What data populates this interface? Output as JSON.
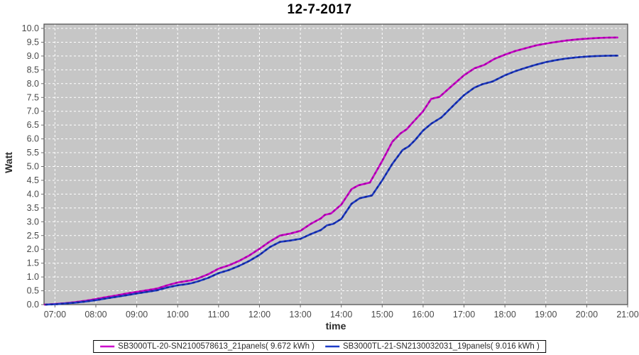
{
  "chart_data": {
    "type": "line",
    "title": "12-7-2017",
    "xlabel": "time",
    "ylabel": "Watt",
    "grid": true,
    "legend_position": "bottom",
    "colors": {
      "plot_bg": "#c6c6c6",
      "grid": "#ffffff",
      "plot_border": "#545454",
      "tick_mark": "#6b6b6b",
      "tick_text": "#4a4a4a",
      "outer_bg": "#ffffff"
    },
    "x_axis": {
      "min": 6.733,
      "max": 21,
      "tick_hours": [
        7,
        8,
        9,
        10,
        11,
        12,
        13,
        14,
        15,
        16,
        17,
        18,
        19,
        20,
        21
      ],
      "tick_labels": [
        "07:00",
        "08:00",
        "09:00",
        "10:00",
        "11:00",
        "12:00",
        "13:00",
        "14:00",
        "15:00",
        "16:00",
        "17:00",
        "18:00",
        "19:00",
        "20:00",
        "21:00"
      ]
    },
    "y_axis": {
      "min": 0,
      "max": 10.15,
      "tick_step": 0.5,
      "tick_labels": [
        "0.0",
        "0.5",
        "1.0",
        "1.5",
        "2.0",
        "2.5",
        "3.0",
        "3.5",
        "4.0",
        "4.5",
        "5.0",
        "5.5",
        "6.0",
        "6.5",
        "7.0",
        "7.5",
        "8.0",
        "8.5",
        "9.0",
        "9.5",
        "10.0"
      ]
    },
    "series": [
      {
        "name": "SB3000TL-20-SN2100578613_21panels( 9.672 kWh )",
        "color": "#cc00cc",
        "dot_color": "#a400a4",
        "total_kwh": "9.672",
        "points": [
          [
            6.75,
            0.0
          ],
          [
            7.0,
            0.02
          ],
          [
            7.25,
            0.05
          ],
          [
            7.5,
            0.09
          ],
          [
            7.75,
            0.14
          ],
          [
            8.0,
            0.2
          ],
          [
            8.25,
            0.27
          ],
          [
            8.5,
            0.33
          ],
          [
            8.75,
            0.4
          ],
          [
            9.0,
            0.46
          ],
          [
            9.25,
            0.52
          ],
          [
            9.5,
            0.58
          ],
          [
            9.75,
            0.7
          ],
          [
            10.0,
            0.8
          ],
          [
            10.17,
            0.84
          ],
          [
            10.33,
            0.88
          ],
          [
            10.5,
            0.95
          ],
          [
            10.75,
            1.1
          ],
          [
            11.0,
            1.3
          ],
          [
            11.25,
            1.42
          ],
          [
            11.5,
            1.58
          ],
          [
            11.75,
            1.78
          ],
          [
            12.0,
            2.02
          ],
          [
            12.25,
            2.28
          ],
          [
            12.5,
            2.5
          ],
          [
            12.75,
            2.57
          ],
          [
            13.0,
            2.67
          ],
          [
            13.25,
            2.92
          ],
          [
            13.5,
            3.12
          ],
          [
            13.6,
            3.25
          ],
          [
            13.75,
            3.3
          ],
          [
            14.0,
            3.62
          ],
          [
            14.25,
            4.18
          ],
          [
            14.42,
            4.32
          ],
          [
            14.7,
            4.42
          ],
          [
            15.0,
            5.2
          ],
          [
            15.25,
            5.9
          ],
          [
            15.45,
            6.2
          ],
          [
            15.6,
            6.35
          ],
          [
            15.75,
            6.6
          ],
          [
            16.0,
            7.0
          ],
          [
            16.2,
            7.45
          ],
          [
            16.4,
            7.52
          ],
          [
            16.75,
            7.98
          ],
          [
            17.0,
            8.3
          ],
          [
            17.25,
            8.55
          ],
          [
            17.5,
            8.68
          ],
          [
            17.75,
            8.9
          ],
          [
            18.0,
            9.05
          ],
          [
            18.25,
            9.18
          ],
          [
            18.5,
            9.28
          ],
          [
            18.75,
            9.38
          ],
          [
            19.0,
            9.45
          ],
          [
            19.25,
            9.51
          ],
          [
            19.5,
            9.56
          ],
          [
            19.75,
            9.6
          ],
          [
            20.0,
            9.63
          ],
          [
            20.25,
            9.65
          ],
          [
            20.5,
            9.665
          ],
          [
            20.75,
            9.672
          ]
        ]
      },
      {
        "name": "SB3000TL-21-SN2130032031_19panels( 9.016 kWh )",
        "color": "#1e3cc8",
        "dot_color": "#14289a",
        "total_kwh": "9.016",
        "points": [
          [
            6.78,
            0.0
          ],
          [
            7.0,
            0.01
          ],
          [
            7.25,
            0.04
          ],
          [
            7.5,
            0.07
          ],
          [
            7.75,
            0.11
          ],
          [
            8.0,
            0.16
          ],
          [
            8.25,
            0.22
          ],
          [
            8.5,
            0.28
          ],
          [
            8.75,
            0.34
          ],
          [
            9.0,
            0.4
          ],
          [
            9.25,
            0.46
          ],
          [
            9.5,
            0.52
          ],
          [
            9.75,
            0.62
          ],
          [
            10.0,
            0.7
          ],
          [
            10.17,
            0.73
          ],
          [
            10.33,
            0.77
          ],
          [
            10.5,
            0.84
          ],
          [
            10.75,
            0.97
          ],
          [
            11.0,
            1.14
          ],
          [
            11.25,
            1.25
          ],
          [
            11.5,
            1.4
          ],
          [
            11.75,
            1.58
          ],
          [
            12.0,
            1.8
          ],
          [
            12.25,
            2.08
          ],
          [
            12.5,
            2.27
          ],
          [
            12.75,
            2.32
          ],
          [
            13.0,
            2.38
          ],
          [
            13.25,
            2.55
          ],
          [
            13.5,
            2.7
          ],
          [
            13.65,
            2.87
          ],
          [
            13.8,
            2.92
          ],
          [
            14.0,
            3.1
          ],
          [
            14.25,
            3.65
          ],
          [
            14.45,
            3.85
          ],
          [
            14.75,
            3.95
          ],
          [
            15.0,
            4.5
          ],
          [
            15.25,
            5.1
          ],
          [
            15.5,
            5.6
          ],
          [
            15.65,
            5.73
          ],
          [
            15.8,
            5.95
          ],
          [
            16.0,
            6.3
          ],
          [
            16.2,
            6.55
          ],
          [
            16.45,
            6.78
          ],
          [
            16.75,
            7.22
          ],
          [
            17.0,
            7.58
          ],
          [
            17.25,
            7.85
          ],
          [
            17.45,
            7.98
          ],
          [
            17.7,
            8.08
          ],
          [
            18.0,
            8.3
          ],
          [
            18.25,
            8.45
          ],
          [
            18.5,
            8.57
          ],
          [
            18.75,
            8.68
          ],
          [
            19.0,
            8.78
          ],
          [
            19.25,
            8.85
          ],
          [
            19.5,
            8.91
          ],
          [
            19.75,
            8.95
          ],
          [
            20.0,
            8.98
          ],
          [
            20.25,
            9.0
          ],
          [
            20.5,
            9.01
          ],
          [
            20.75,
            9.016
          ]
        ]
      }
    ]
  }
}
